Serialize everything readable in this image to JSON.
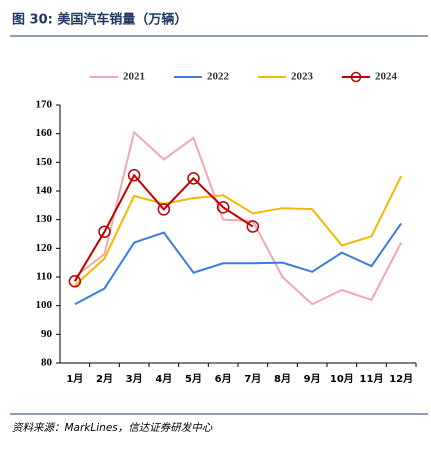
{
  "chart_data": {
    "type": "line",
    "title": "图 30: 美国汽车销量（万辆）",
    "source": "资料来源：MarkLines，信达证券研发中心",
    "categories": [
      "1月",
      "2月",
      "3月",
      "4月",
      "5月",
      "6月",
      "7月",
      "8月",
      "9月",
      "10月",
      "11月",
      "12月"
    ],
    "series": [
      {
        "name": "2021",
        "color": "#f4a7b0",
        "values": [
          110,
          118,
          160.5,
          151,
          158.5,
          130,
          129.5,
          110,
          100.5,
          105.5,
          102,
          122
        ]
      },
      {
        "name": "2022",
        "color": "#3b7ddd",
        "values": [
          100.5,
          106,
          122,
          125.5,
          111.5,
          114.8,
          114.8,
          115,
          111.8,
          118.5,
          113.8,
          128.7
        ]
      },
      {
        "name": "2023",
        "color": "#f5b800",
        "values": [
          107,
          116.5,
          138.3,
          135.5,
          137.5,
          138.5,
          132.2,
          134,
          133.7,
          121,
          124.2,
          145.2
        ]
      },
      {
        "name": "2024",
        "color": "#c00000",
        "marker": "circle",
        "values": [
          108.5,
          125.8,
          145.5,
          133.6,
          144.4,
          134.3,
          127.6,
          null,
          null,
          null,
          null,
          null
        ]
      }
    ],
    "ylim": [
      80,
      170
    ],
    "yticks": [
      80,
      90,
      100,
      110,
      120,
      130,
      140,
      150,
      160,
      170
    ]
  }
}
